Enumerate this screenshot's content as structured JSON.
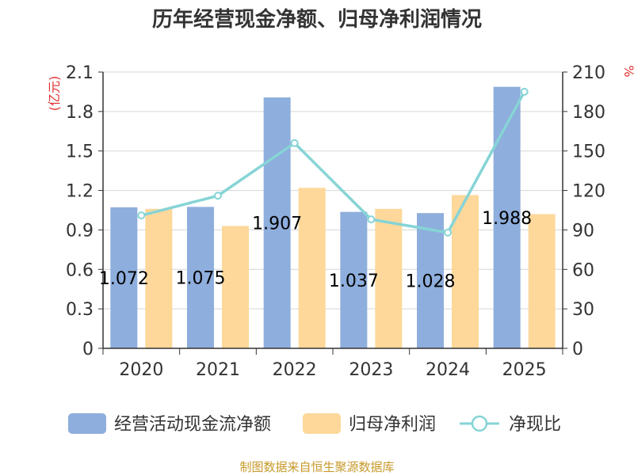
{
  "chart_data": {
    "type": "bar",
    "title": "历年经营现金净额、归母净利润情况",
    "categories": [
      "2020",
      "2021",
      "2022",
      "2023",
      "2024",
      "2025"
    ],
    "series": [
      {
        "name": "经营活动现金流净额",
        "kind": "bar",
        "axis": "left",
        "color": "#8eaedd",
        "values": [
          1.072,
          1.075,
          1.907,
          1.037,
          1.028,
          1.988
        ],
        "labels": [
          "1.072",
          "1.075",
          "1.907",
          "1.037",
          "1.028",
          "1.988"
        ]
      },
      {
        "name": "归母净利润",
        "kind": "bar",
        "axis": "left",
        "color": "#fdd89a",
        "values": [
          1.06,
          0.93,
          1.22,
          1.06,
          1.165,
          1.02
        ]
      },
      {
        "name": "净现比",
        "kind": "line",
        "axis": "right",
        "color": "#86d4d6",
        "values": [
          101,
          116,
          156,
          98,
          88,
          195
        ]
      }
    ],
    "y_left": {
      "unit": "(亿元)",
      "min": 0,
      "max": 2.1,
      "ticks": [
        "0",
        "0.3",
        "0.6",
        "0.9",
        "1.2",
        "1.5",
        "1.8",
        "2.1"
      ]
    },
    "y_right": {
      "unit": "%",
      "min": 0,
      "max": 210,
      "ticks": [
        "0",
        "30",
        "60",
        "90",
        "120",
        "150",
        "180",
        "210"
      ]
    },
    "grid": true,
    "legend_position": "bottom"
  },
  "source_text": "制图数据来自恒生聚源数据库"
}
